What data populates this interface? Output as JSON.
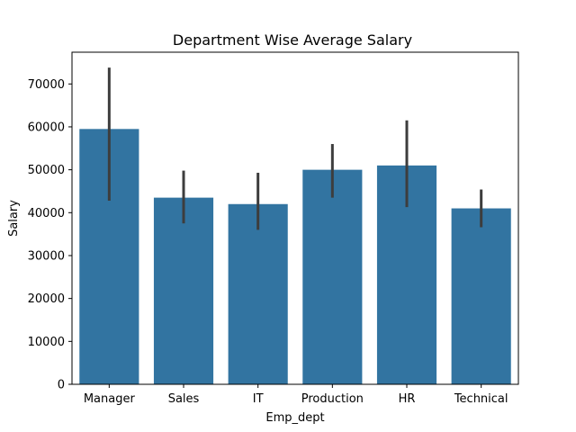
{
  "chart_data": {
    "type": "bar",
    "title": "Department Wise Average  Salary",
    "xlabel": "Emp_dept",
    "ylabel": "Salary",
    "categories": [
      "Manager",
      "Sales",
      "IT",
      "Production",
      "HR",
      "Technical"
    ],
    "values": [
      59500,
      43500,
      42000,
      50000,
      51000,
      41000
    ],
    "error_low": [
      42800,
      37500,
      36000,
      43500,
      41300,
      36600
    ],
    "error_high": [
      73800,
      49800,
      49300,
      56000,
      61500,
      45400
    ],
    "yticks": [
      0,
      10000,
      20000,
      30000,
      40000,
      50000,
      60000,
      70000
    ],
    "ytick_labels": [
      "0",
      "10000",
      "20000",
      "30000",
      "40000",
      "50000",
      "60000",
      "70000"
    ],
    "ylim": [
      0,
      77400
    ],
    "grid": false,
    "bar_color": "#3274a1",
    "errorbar_color": "#3d3d3d"
  }
}
